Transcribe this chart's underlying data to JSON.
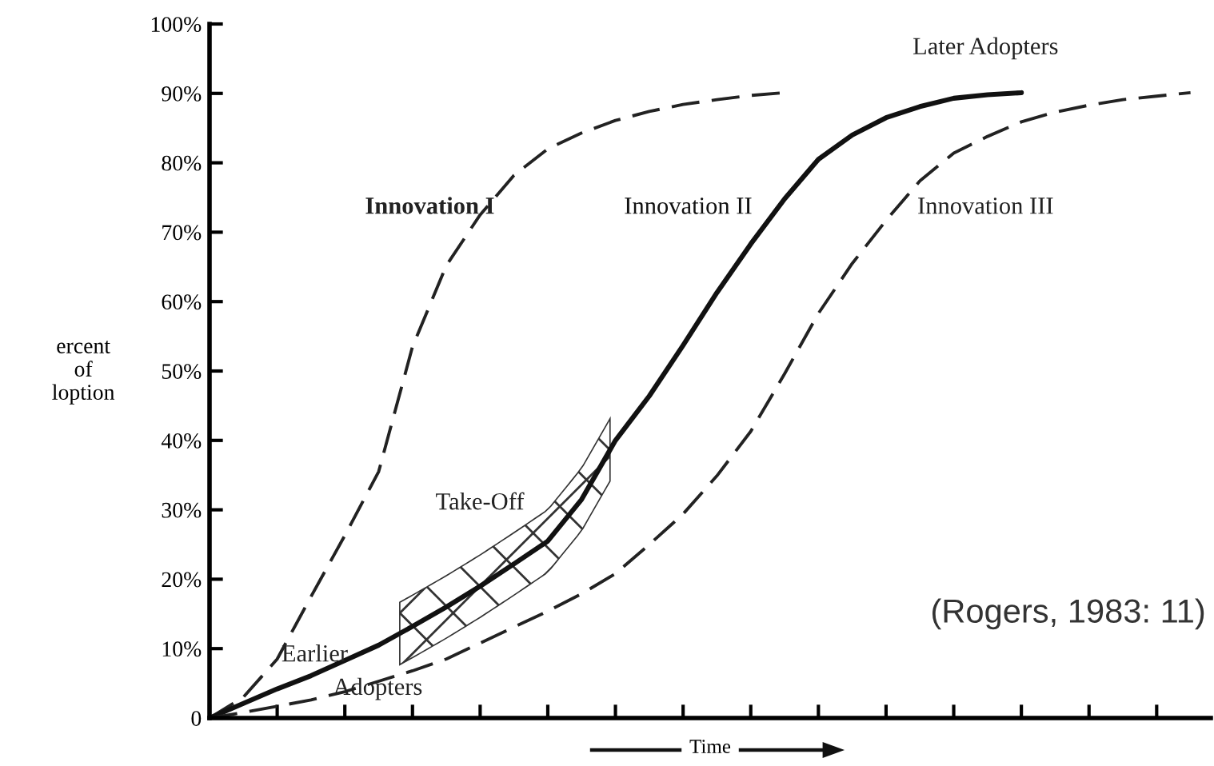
{
  "chart_data": {
    "type": "line",
    "xlabel": "Time",
    "ylabel": "ercent\nof\nloption",
    "categories": [
      null,
      null,
      null,
      null,
      null,
      null,
      null,
      null,
      null,
      null,
      null,
      null,
      null,
      null,
      null,
      null,
      null,
      null,
      null,
      null,
      null,
      null,
      null,
      null,
      null,
      null,
      null,
      null,
      null,
      null
    ],
    "ylim": [
      0,
      100
    ],
    "yticks": [
      {
        "value": 0,
        "label": "0"
      },
      {
        "value": 10,
        "label": "10%"
      },
      {
        "value": 20,
        "label": "20%"
      },
      {
        "value": 30,
        "label": "30%"
      },
      {
        "value": 40,
        "label": "40%"
      },
      {
        "value": 50,
        "label": "50%"
      },
      {
        "value": 60,
        "label": "60%"
      },
      {
        "value": 70,
        "label": "70%"
      },
      {
        "value": 80,
        "label": "80%"
      },
      {
        "value": 90,
        "label": "90%"
      },
      {
        "value": 100,
        "label": "100%"
      }
    ],
    "tick_labels": "y",
    "series": [
      {
        "name": "Innovation I",
        "color": "#222222",
        "line_style": "dashed",
        "values": [
          0,
          3,
          8.5,
          17.5,
          26.3,
          35.5,
          53.5,
          65.2,
          72.5,
          78.2,
          82,
          84.3,
          86.1,
          87.4,
          88.4,
          89.1,
          89.7,
          90.1,
          null,
          null,
          null,
          null,
          null,
          null,
          null,
          null,
          null,
          null,
          null,
          null
        ]
      },
      {
        "name": "Innovation II",
        "color": "#111111",
        "line_style": "solid",
        "values": [
          0,
          2.1,
          4.2,
          6.1,
          8.3,
          10.5,
          13.2,
          16,
          19,
          22.2,
          25.5,
          31.5,
          40,
          46.4,
          53.7,
          61.3,
          68.3,
          74.8,
          80.5,
          84,
          86.5,
          88.1,
          89.3,
          89.8,
          90.1,
          null,
          null,
          null,
          null,
          null
        ]
      },
      {
        "name": "Innovation III",
        "color": "#222222",
        "line_style": "dashed",
        "values": [
          0,
          0.8,
          1.7,
          2.6,
          3.8,
          5.3,
          6.8,
          8.5,
          10.8,
          13.1,
          15.4,
          17.9,
          20.8,
          25,
          29.4,
          34.9,
          41.3,
          49.6,
          58.3,
          65.5,
          71.7,
          77.4,
          81.4,
          83.8,
          85.9,
          87.3,
          88.3,
          89.1,
          89.6,
          90.1
        ]
      }
    ],
    "annotations": [
      "Later Adopters",
      "Take-Off",
      "Earlier",
      "Adopters",
      "(Rogers, 1983: 11)"
    ]
  }
}
